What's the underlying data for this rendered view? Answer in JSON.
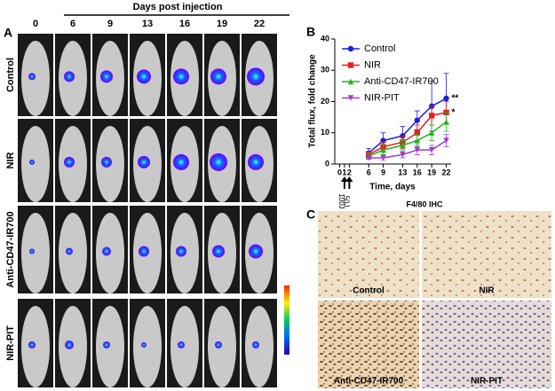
{
  "panel_a": {
    "label": "A",
    "header": "Days post injection",
    "days": [
      "0",
      "6",
      "9",
      "13",
      "16",
      "19",
      "22"
    ],
    "rows": [
      "Control",
      "NIR",
      "Anti-CD47-IR700",
      "NIR-PIT"
    ]
  },
  "chart_data": {
    "type": "line",
    "panel_label": "B",
    "xlabel": "Time, days",
    "ylabel": "Total flux, fold change",
    "x": [
      6,
      9,
      13,
      16,
      19,
      22
    ],
    "xlim": [
      -1,
      23
    ],
    "xticks": [
      0,
      1,
      2,
      6,
      9,
      13,
      16,
      19,
      22
    ],
    "ylim": [
      0,
      40
    ],
    "yticks": [
      0,
      10,
      20,
      30,
      40
    ],
    "legend": "upper left",
    "series": [
      {
        "name": "Control",
        "color": "#1f1fd6",
        "marker": "circle",
        "values": [
          3.5,
          7.5,
          9,
          14,
          18.5,
          21
        ],
        "errors": [
          1.5,
          2.5,
          3,
          3,
          8,
          8
        ],
        "annotation": "**"
      },
      {
        "name": "NIR",
        "color": "#e8211d",
        "marker": "square",
        "values": [
          3,
          5.5,
          7,
          10,
          15.5,
          16.5
        ],
        "errors": [
          1,
          1.5,
          2,
          2.5,
          3,
          3.5
        ],
        "annotation": "*"
      },
      {
        "name": "Anti-CD47-IR700",
        "color": "#22b422",
        "marker": "triangle",
        "values": [
          2.5,
          4.5,
          6,
          7.5,
          10,
          13.5
        ],
        "errors": [
          1,
          1.5,
          1.5,
          2,
          2.5,
          3
        ]
      },
      {
        "name": "NIR-PIT",
        "color": "#a03cd0",
        "marker": "triangle-down",
        "values": [
          2,
          2,
          3,
          4.5,
          4.5,
          7.5
        ],
        "errors": [
          0.5,
          0.8,
          1,
          1.5,
          1.5,
          2
        ]
      }
    ],
    "treatments": [
      {
        "x": 1,
        "label": "100J"
      },
      {
        "x": 2,
        "label": "50J"
      }
    ]
  },
  "panel_c": {
    "label": "C",
    "title": "F4/80 IHC",
    "panels": [
      "Control",
      "NIR",
      "Anti-CD47-IR700",
      "NIR-PIT"
    ]
  }
}
